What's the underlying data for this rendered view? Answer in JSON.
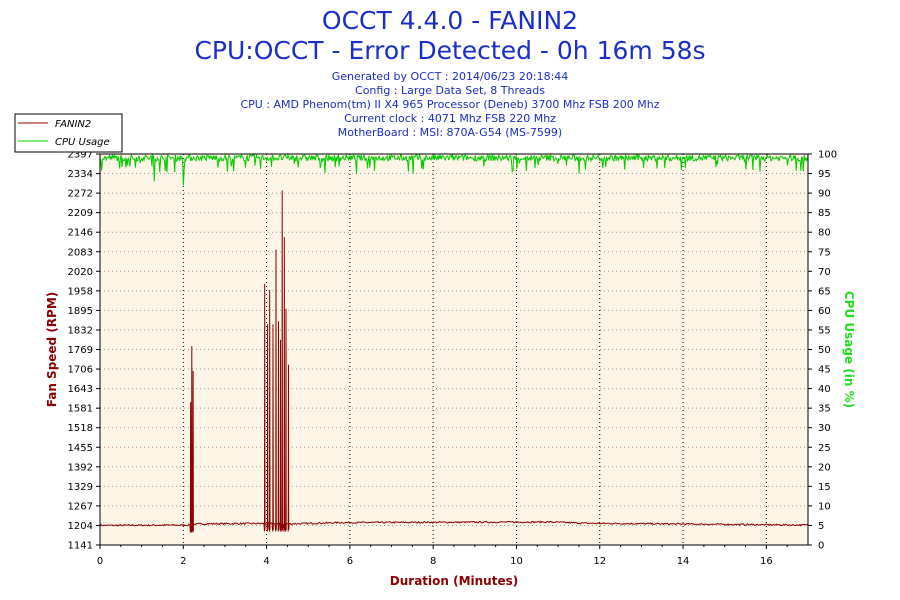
{
  "header": {
    "title": "OCCT 4.4.0 - FANIN2",
    "subtitle": "CPU:OCCT - Error Detected - 0h 16m 58s",
    "info_lines": [
      "Generated by OCCT : 2014/06/23 20:18:44",
      "Config : Large Data Set, 8 Threads",
      "CPU : AMD Phenom(tm) II X4 965 Processor (Deneb) 3700 Mhz FSB 200 Mhz",
      "Current clock : 4071 Mhz FSB 220 Mhz",
      "MotherBoard : MSI: 870A-G54 (MS-7599)"
    ]
  },
  "legend": {
    "items": [
      {
        "label": "FANIN2",
        "color": "#8b0000"
      },
      {
        "label": "CPU Usage",
        "color": "#00cc00"
      }
    ]
  },
  "chart_data": {
    "type": "line",
    "xlabel": "Duration (Minutes)",
    "ylabel": "Fan Speed (RPM)",
    "y2label": "CPU Usage (in %)",
    "xlim": [
      0,
      17
    ],
    "ylim": [
      1141,
      2397
    ],
    "y2lim": [
      0,
      100
    ],
    "x_ticks": [
      "0",
      "2",
      "4",
      "6",
      "8",
      "10",
      "12",
      "14",
      "16"
    ],
    "x_tick_values": [
      0,
      2,
      4,
      6,
      8,
      10,
      12,
      14,
      16
    ],
    "y_ticks": [
      "1141",
      "1204",
      "1267",
      "1329",
      "1392",
      "1455",
      "1518",
      "1581",
      "1643",
      "1706",
      "1769",
      "1832",
      "1895",
      "1958",
      "2020",
      "2083",
      "2146",
      "2209",
      "2272",
      "2334",
      "2397"
    ],
    "y2_ticks": [
      "0",
      "5",
      "10",
      "15",
      "20",
      "25",
      "30",
      "35",
      "40",
      "45",
      "50",
      "55",
      "60",
      "65",
      "70",
      "75",
      "80",
      "85",
      "90",
      "95",
      "100"
    ],
    "grid": true,
    "legend_position": "top-left",
    "series": [
      {
        "name": "FANIN2",
        "color": "#8b0000",
        "axis": "left",
        "baseline": [
          {
            "x": 0,
            "y": 1204
          },
          {
            "x": 2.1,
            "y": 1205
          },
          {
            "x": 2.4,
            "y": 1209
          },
          {
            "x": 3.9,
            "y": 1210
          },
          {
            "x": 4.6,
            "y": 1209
          },
          {
            "x": 5.8,
            "y": 1213
          },
          {
            "x": 10.8,
            "y": 1215
          },
          {
            "x": 11.6,
            "y": 1211
          },
          {
            "x": 17,
            "y": 1205
          }
        ],
        "spikes": [
          {
            "x": 2.17,
            "y": 1600
          },
          {
            "x": 2.2,
            "y": 1780
          },
          {
            "x": 2.23,
            "y": 1700
          },
          {
            "x": 3.95,
            "y": 1980
          },
          {
            "x": 4.02,
            "y": 1850
          },
          {
            "x": 4.07,
            "y": 1960
          },
          {
            "x": 4.15,
            "y": 1850
          },
          {
            "x": 4.22,
            "y": 2090
          },
          {
            "x": 4.28,
            "y": 1860
          },
          {
            "x": 4.33,
            "y": 1800
          },
          {
            "x": 4.37,
            "y": 2280
          },
          {
            "x": 4.42,
            "y": 2130
          },
          {
            "x": 4.46,
            "y": 1900
          },
          {
            "x": 4.52,
            "y": 1720
          }
        ]
      },
      {
        "name": "CPU Usage",
        "color": "#00cc00",
        "axis": "right",
        "level": 99,
        "dips": [
          {
            "x": 1.3,
            "y": 93
          },
          {
            "x": 2.0,
            "y": 92
          },
          {
            "x": 7.5,
            "y": 95
          },
          {
            "x": 11.5,
            "y": 95
          },
          {
            "x": 15.5,
            "y": 96
          }
        ]
      }
    ]
  }
}
